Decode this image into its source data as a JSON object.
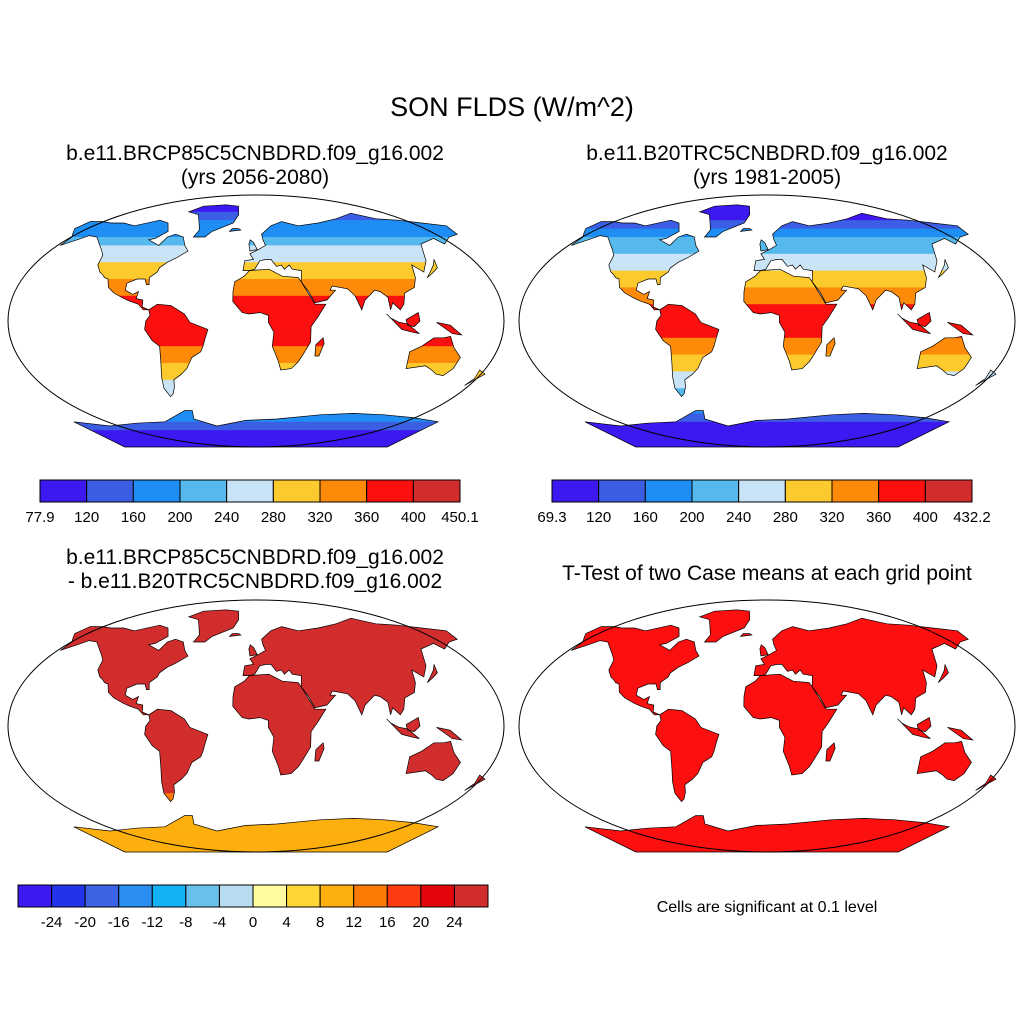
{
  "title": "SON FLDS (W/m^2)",
  "panels": [
    {
      "id": "p1",
      "title_line1": "b.e11.BRCP85C5CNBDRD.f09_g16.002",
      "title_line2": "(yrs 2056-2080)"
    },
    {
      "id": "p2",
      "title_line1": "b.e11.B20TRC5CNBDRD.f09_g16.002",
      "title_line2": "(yrs 1981-2005)"
    },
    {
      "id": "p3",
      "title_line1": "b.e11.BRCP85C5CNBDRD.f09_g16.002",
      "title_line2": "- b.e11.B20TRC5CNBDRD.f09_g16.002"
    },
    {
      "id": "p4",
      "title_line1": "T-Test of two Case means at each grid point",
      "note": "Cells are significant at 0.1 level"
    }
  ],
  "colorbars": {
    "cb1": {
      "labels": [
        "77.9",
        "120",
        "160",
        "200",
        "240",
        "280",
        "320",
        "360",
        "400",
        "450.1"
      ],
      "colors": [
        "#3b19f0",
        "#3c5ee4",
        "#1e8ef5",
        "#55b9ee",
        "#c9e4f6",
        "#fdca2e",
        "#fd8a08",
        "#fb0f0f",
        "#d22d2d"
      ]
    },
    "cb2": {
      "labels": [
        "69.3",
        "120",
        "160",
        "200",
        "240",
        "280",
        "320",
        "360",
        "400",
        "432.2"
      ],
      "colors": [
        "#3b19f0",
        "#3c5ee4",
        "#1e8ef5",
        "#55b9ee",
        "#c9e4f6",
        "#fdca2e",
        "#fd8a08",
        "#fb0f0f",
        "#d22d2d"
      ]
    },
    "cb3": {
      "labels": [
        "-24",
        "-20",
        "-16",
        "-12",
        "-8",
        "-4",
        "0",
        "4",
        "8",
        "12",
        "16",
        "20",
        "24"
      ],
      "colors": [
        "#3b19f0",
        "#2233ea",
        "#3c63e4",
        "#2b8ff2",
        "#14b2f3",
        "#6ac0ec",
        "#b7dcef",
        "#fffca0",
        "#fdd534",
        "#fdaf0e",
        "#fd7a07",
        "#fc3b10",
        "#e3060a",
        "#d22d2d"
      ]
    }
  },
  "maps": {
    "map1": {
      "mode": "abs",
      "base": 400
    },
    "map2": {
      "mode": "abs",
      "base": 385
    },
    "map3": {
      "mode": "diff"
    },
    "map4": {
      "mode": "sig",
      "color": "#fb0f0f"
    }
  }
}
